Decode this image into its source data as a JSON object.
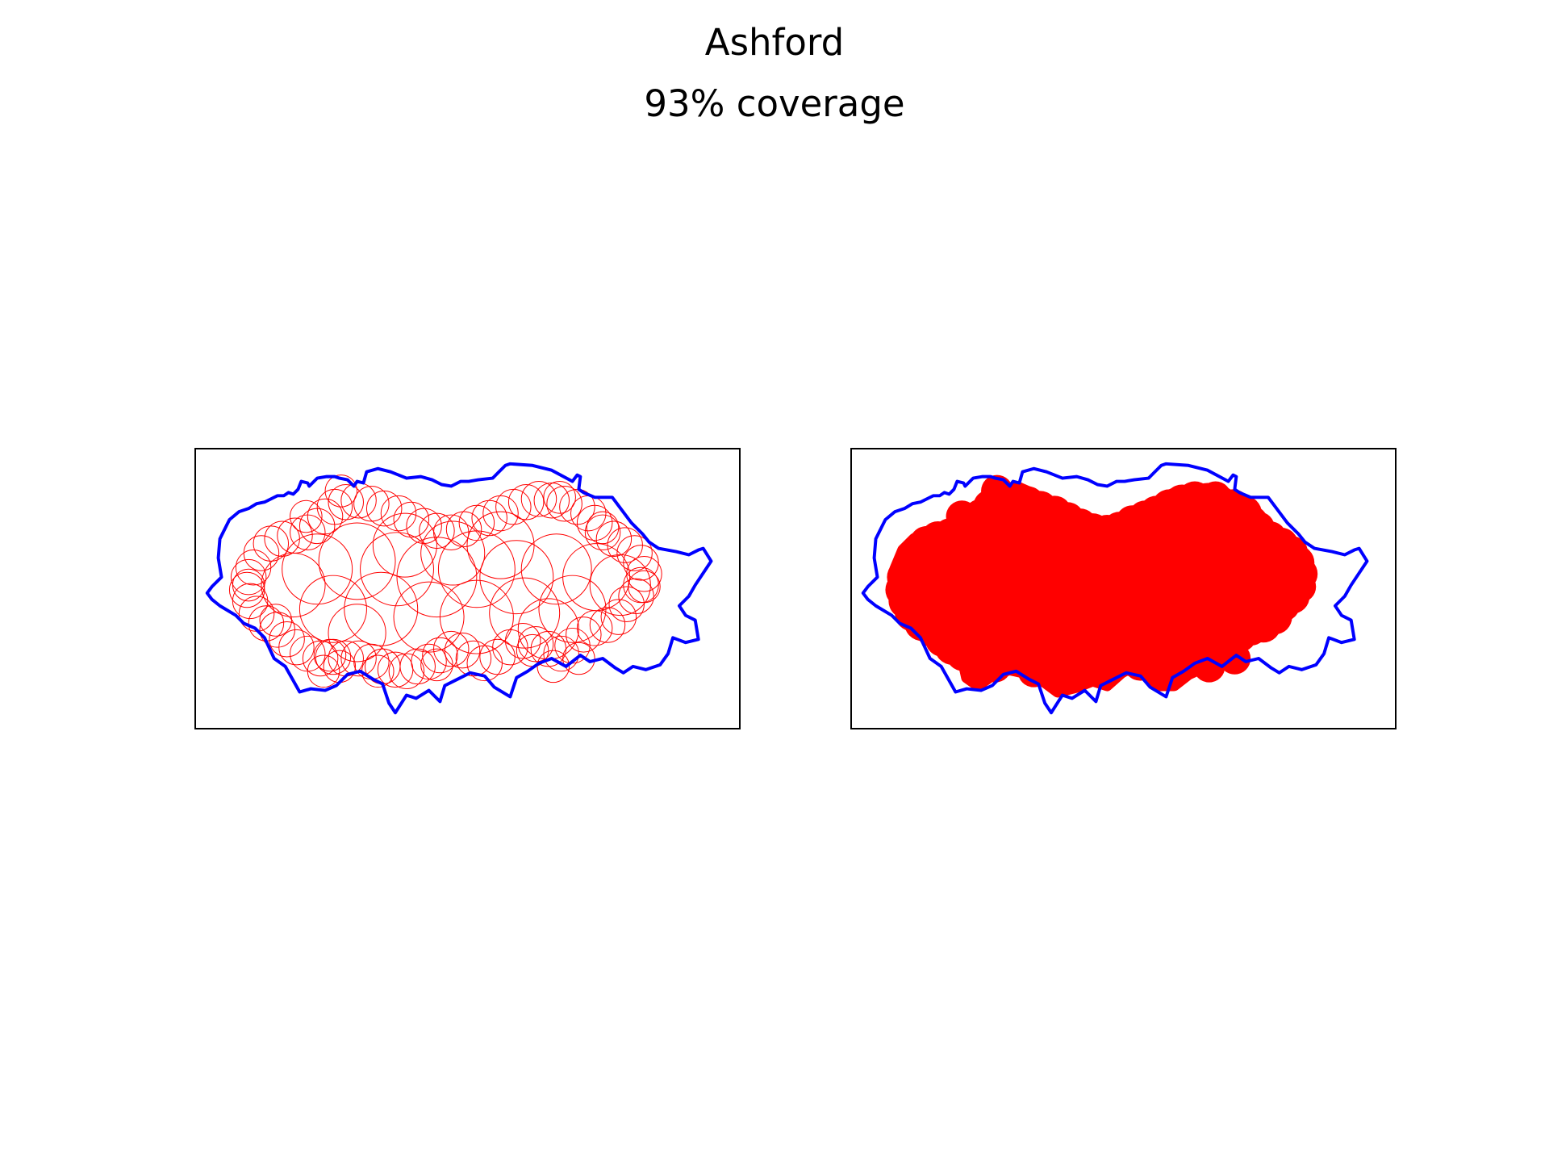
{
  "figure": {
    "title": "Ashford",
    "subtitle": "93% coverage"
  },
  "colors": {
    "boundary": "#0000ff",
    "coverage": "#ff0000",
    "frame": "#000000",
    "background": "#ffffff"
  },
  "panels": [
    {
      "id": "circles",
      "style": "outline"
    },
    {
      "id": "union",
      "style": "filled"
    }
  ]
}
